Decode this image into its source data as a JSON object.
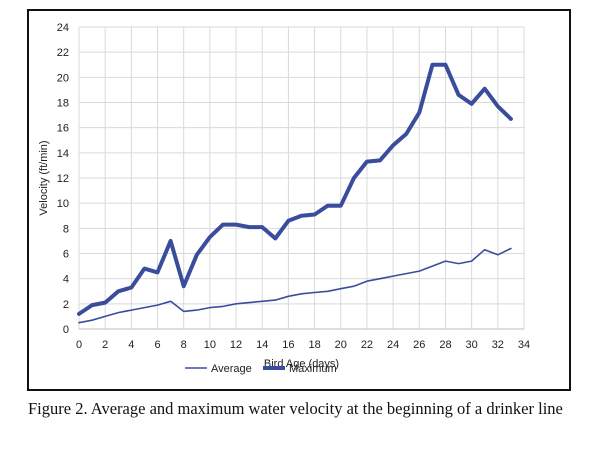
{
  "caption": "Figure 2.  Average and maximum water velocity at the beginning of a drinker line",
  "chart_data": {
    "type": "line",
    "title": "",
    "xlabel": "Bird Age (days)",
    "ylabel": "Velocity (ft/min)",
    "xlim": [
      0,
      34
    ],
    "ylim": [
      0,
      24
    ],
    "xticks": [
      0,
      2,
      4,
      6,
      8,
      10,
      12,
      14,
      16,
      18,
      20,
      22,
      24,
      26,
      28,
      30,
      32,
      34
    ],
    "yticks": [
      0,
      2,
      4,
      6,
      8,
      10,
      12,
      14,
      16,
      18,
      20,
      22,
      24
    ],
    "grid": true,
    "legend": "bottom",
    "x": [
      0,
      1,
      2,
      3,
      4,
      5,
      6,
      7,
      8,
      9,
      10,
      11,
      12,
      13,
      14,
      15,
      16,
      17,
      18,
      19,
      20,
      21,
      22,
      23,
      24,
      25,
      26,
      27,
      28,
      29,
      30,
      31,
      32,
      33
    ],
    "series": [
      {
        "name": "Average",
        "color": "#3a4d9c",
        "line_weight": "thin",
        "values": [
          0.5,
          0.7,
          1.0,
          1.3,
          1.5,
          1.7,
          1.9,
          2.2,
          1.4,
          1.5,
          1.7,
          1.8,
          2.0,
          2.1,
          2.2,
          2.3,
          2.6,
          2.8,
          2.9,
          3.0,
          3.2,
          3.4,
          3.8,
          4.0,
          4.2,
          4.4,
          4.6,
          5.0,
          5.4,
          5.2,
          5.4,
          6.3,
          5.9,
          6.4
        ]
      },
      {
        "name": "Maximum",
        "color": "#3a4d9c",
        "line_weight": "thick",
        "values": [
          1.2,
          1.9,
          2.1,
          3.0,
          3.3,
          4.8,
          4.5,
          7.0,
          3.4,
          5.9,
          7.3,
          8.3,
          8.3,
          8.1,
          8.1,
          7.2,
          8.6,
          9.0,
          9.1,
          9.8,
          9.8,
          12.0,
          13.3,
          13.4,
          14.6,
          15.5,
          17.2,
          21.0,
          21.0,
          18.6,
          17.9,
          19.1,
          17.7,
          16.7
        ]
      }
    ]
  }
}
